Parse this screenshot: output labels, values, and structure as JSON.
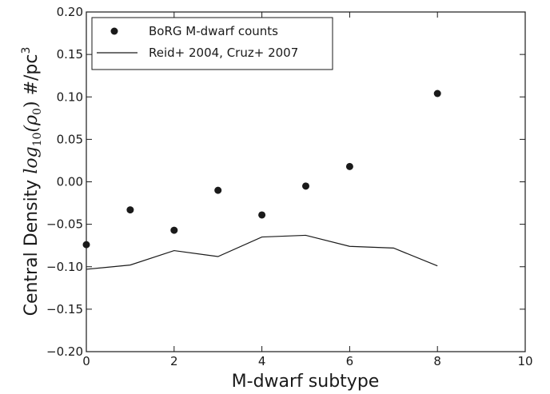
{
  "chart_data": {
    "type": "scatter",
    "xlabel": "M-dwarf subtype",
    "ylabel_prefix": "Central Density ",
    "ylabel_math": "log",
    "ylabel_sub": "10",
    "ylabel_arg": "(ρ",
    "ylabel_arg_sub": "0",
    "ylabel_arg_close": ")",
    "ylabel_unit": " #/pc",
    "ylabel_unit_sup": "3",
    "xlim": [
      0,
      10
    ],
    "ylim": [
      -0.2,
      0.2
    ],
    "x_ticks": [
      0,
      2,
      4,
      6,
      8,
      10
    ],
    "x_tick_labels": [
      "0",
      "2",
      "4",
      "6",
      "8",
      "10"
    ],
    "y_ticks": [
      0.2,
      0.15,
      0.1,
      0.05,
      0.0,
      -0.05,
      -0.1,
      -0.15,
      -0.2
    ],
    "y_tick_labels": [
      "0.20",
      "0.15",
      "0.10",
      "0.05",
      "0.00",
      "−0.05",
      "−0.10",
      "−0.15",
      "−0.20"
    ],
    "legend_position": "top-left",
    "grid": false,
    "series": [
      {
        "name": "BoRG M-dwarf counts",
        "style": "markers",
        "color": "#1a1a1a",
        "x": [
          0,
          1,
          2,
          3,
          4,
          5,
          6,
          8
        ],
        "y": [
          -0.074,
          -0.033,
          -0.057,
          -0.01,
          -0.039,
          -0.005,
          0.018,
          0.104
        ]
      },
      {
        "name": "Reid+ 2004, Cruz+ 2007",
        "style": "line",
        "color": "#1a1a1a",
        "x": [
          0,
          1,
          2,
          3,
          4,
          5,
          6,
          7,
          8
        ],
        "y": [
          -0.103,
          -0.098,
          -0.081,
          -0.088,
          -0.065,
          -0.063,
          -0.076,
          -0.078,
          -0.099
        ]
      }
    ]
  }
}
